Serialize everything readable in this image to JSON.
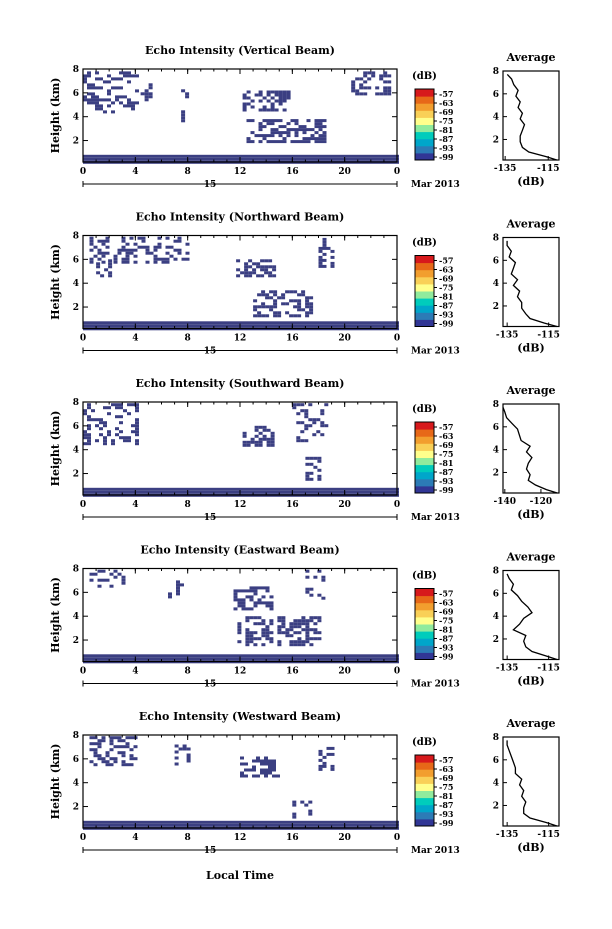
{
  "figure": {
    "xaxis_label": "Local Time",
    "date_day": "15",
    "date_month_year": "Mar 2013",
    "colorbar_unit": "(dB)",
    "colorbar_ticks": [
      "-57",
      "-63",
      "-69",
      "-75",
      "-81",
      "-87",
      "-93",
      "-99"
    ],
    "colorbar_colors": [
      "#313695",
      "#2c7bb6",
      "#00a6ca",
      "#00ccbc",
      "#90eb9d",
      "#ffff8c",
      "#f9d057",
      "#f29e2e",
      "#e76818",
      "#d7191c"
    ],
    "echo_color": "#3b3f82",
    "profile_title": "Average",
    "profile_xlabel": "(dB)"
  },
  "chart_data": [
    {
      "type": "heatmap",
      "title": "Echo Intensity (Vertical Beam)",
      "ylabel": "Height (km)",
      "xlabel": "Local Time",
      "xlim": [
        0,
        24
      ],
      "ylim": [
        0.2,
        8
      ],
      "xticks": [
        "0",
        "4",
        "8",
        "12",
        "16",
        "20",
        "0"
      ],
      "yticks": [
        "2",
        "4",
        "6",
        "8"
      ],
      "color_range_db": [
        -99,
        -57
      ],
      "regions": [
        {
          "name": "near-ground layer",
          "t": [
            0,
            24
          ],
          "h": [
            0.2,
            0.8
          ]
        },
        {
          "name": "early high echo",
          "t": [
            0,
            4
          ],
          "h": [
            4.5,
            7.8
          ]
        },
        {
          "name": "streak",
          "t": [
            4.4,
            5.2
          ],
          "h": [
            5.5,
            7.3
          ]
        },
        {
          "name": "streak",
          "t": [
            7.5,
            7.9
          ],
          "h": [
            3.5,
            6.3
          ]
        },
        {
          "name": "cluster",
          "t": [
            12.2,
            15.6
          ],
          "h": [
            4.5,
            6.2
          ]
        },
        {
          "name": "band",
          "t": [
            12.5,
            18.5
          ],
          "h": [
            1.8,
            3.8
          ]
        },
        {
          "name": "scatter",
          "t": [
            20.5,
            23.5
          ],
          "h": [
            6.0,
            7.8
          ]
        }
      ],
      "profile": {
        "xlim": [
          -136,
          -110
        ],
        "xticks": [
          "-135",
          "-115"
        ],
        "h": [
          0.2,
          0.5,
          0.9,
          1.3,
          1.8,
          2.3,
          2.8,
          3.3,
          3.8,
          4.3,
          4.8,
          5.3,
          5.8,
          6.3,
          6.8,
          7.3,
          7.7
        ],
        "db": [
          -111,
          -116,
          -124,
          -127,
          -128,
          -128,
          -127,
          -126,
          -128,
          -127,
          -129,
          -128,
          -130,
          -129,
          -131,
          -132,
          -134
        ]
      }
    },
    {
      "type": "heatmap",
      "title": "Echo Intensity (Northward Beam)",
      "ylabel": "Height (km)",
      "xlabel": "Local Time",
      "xlim": [
        0,
        24
      ],
      "ylim": [
        0.2,
        8
      ],
      "xticks": [
        "0",
        "4",
        "8",
        "12",
        "16",
        "20",
        "0"
      ],
      "yticks": [
        "2",
        "4",
        "6",
        "8"
      ],
      "color_range_db": [
        -99,
        -57
      ],
      "regions": [
        {
          "name": "near-ground layer",
          "t": [
            0,
            24
          ],
          "h": [
            0.2,
            0.8
          ]
        },
        {
          "name": "early high echo",
          "t": [
            0.5,
            8
          ],
          "h": [
            5.8,
            7.9
          ]
        },
        {
          "name": "streak",
          "t": [
            1,
            2
          ],
          "h": [
            4.5,
            6
          ]
        },
        {
          "name": "cluster",
          "t": [
            11.7,
            14.5
          ],
          "h": [
            4.5,
            6.0
          ]
        },
        {
          "name": "band",
          "t": [
            13,
            17.5
          ],
          "h": [
            1.3,
            3.4
          ]
        },
        {
          "name": "streak",
          "t": [
            18,
            19
          ],
          "h": [
            5.5,
            7.8
          ]
        }
      ],
      "profile": {
        "xlim": [
          -137,
          -110
        ],
        "xticks": [
          "-135",
          "-115"
        ],
        "h": [
          0.2,
          0.5,
          0.9,
          1.3,
          1.8,
          2.3,
          2.8,
          3.3,
          3.8,
          4.3,
          4.8,
          5.3,
          5.8,
          6.3,
          6.8,
          7.3,
          7.7
        ],
        "db": [
          -111,
          -117,
          -124,
          -126,
          -128,
          -128,
          -130,
          -129,
          -132,
          -130,
          -133,
          -132,
          -131,
          -134,
          -133,
          -135,
          -135
        ]
      }
    },
    {
      "type": "heatmap",
      "title": "Echo Intensity (Southward Beam)",
      "ylabel": "Height (km)",
      "xlabel": "Local Time",
      "xlim": [
        0,
        24
      ],
      "ylim": [
        0.2,
        8
      ],
      "xticks": [
        "0",
        "4",
        "8",
        "12",
        "16",
        "20",
        "0"
      ],
      "yticks": [
        "2",
        "4",
        "6",
        "8"
      ],
      "color_range_db": [
        -99,
        -57
      ],
      "regions": [
        {
          "name": "near-ground layer",
          "t": [
            0,
            24
          ],
          "h": [
            0.2,
            0.8
          ]
        },
        {
          "name": "early high echo",
          "t": [
            0,
            4
          ],
          "h": [
            4.5,
            7.9
          ]
        },
        {
          "name": "cluster",
          "t": [
            12.2,
            14.5
          ],
          "h": [
            4.4,
            6.0
          ]
        },
        {
          "name": "scatter",
          "t": [
            16,
            18.5
          ],
          "h": [
            4.8,
            7.9
          ]
        },
        {
          "name": "scatter",
          "t": [
            17,
            18
          ],
          "h": [
            1.5,
            3.4
          ]
        }
      ],
      "profile": {
        "xlim": [
          -141,
          -110
        ],
        "xticks": [
          "-140",
          "-120"
        ],
        "h": [
          0.2,
          0.5,
          0.9,
          1.3,
          1.8,
          2.3,
          2.8,
          3.3,
          3.8,
          4.3,
          4.8,
          5.3,
          5.8,
          6.3,
          6.8,
          7.3,
          7.7
        ],
        "db": [
          -111,
          -117,
          -123,
          -127,
          -126,
          -128,
          -127,
          -125,
          -128,
          -126,
          -131,
          -132,
          -133,
          -136,
          -139,
          -140,
          -141
        ]
      }
    },
    {
      "type": "heatmap",
      "title": "Echo Intensity (Eastward Beam)",
      "ylabel": "Height (km)",
      "xlabel": "Local Time",
      "xlim": [
        0,
        24
      ],
      "ylim": [
        0.2,
        8
      ],
      "xticks": [
        "0",
        "4",
        "8",
        "12",
        "16",
        "20",
        "0"
      ],
      "yticks": [
        "2",
        "4",
        "6",
        "8"
      ],
      "color_range_db": [
        -99,
        -57
      ],
      "regions": [
        {
          "name": "near-ground layer",
          "t": [
            0,
            24
          ],
          "h": [
            0.2,
            0.8
          ]
        },
        {
          "name": "early high echo",
          "t": [
            0.5,
            3.5
          ],
          "h": [
            6.5,
            7.9
          ]
        },
        {
          "name": "streak",
          "t": [
            6.5,
            7.5
          ],
          "h": [
            5.5,
            7.0
          ]
        },
        {
          "name": "cluster",
          "t": [
            11.5,
            14.5
          ],
          "h": [
            4.5,
            6.5
          ]
        },
        {
          "name": "band",
          "t": [
            11.8,
            18
          ],
          "h": [
            1.5,
            4.0
          ]
        },
        {
          "name": "scatter",
          "t": [
            17,
            18.5
          ],
          "h": [
            5.5,
            7.9
          ]
        }
      ],
      "profile": {
        "xlim": [
          -137,
          -110
        ],
        "xticks": [
          "-135",
          "-115"
        ],
        "h": [
          0.2,
          0.5,
          0.9,
          1.3,
          1.8,
          2.3,
          2.8,
          3.3,
          3.8,
          4.3,
          4.8,
          5.3,
          5.8,
          6.3,
          6.8,
          7.3,
          7.7
        ],
        "db": [
          -111,
          -116,
          -123,
          -126,
          -127,
          -126,
          -132,
          -129,
          -127,
          -123,
          -125,
          -128,
          -130,
          -133,
          -132,
          -134,
          -135
        ]
      }
    },
    {
      "type": "heatmap",
      "title": "Echo Intensity (Westward Beam)",
      "ylabel": "Height (km)",
      "xlabel": "Local Time",
      "xlim": [
        0,
        24
      ],
      "ylim": [
        0.2,
        8
      ],
      "xticks": [
        "0",
        "4",
        "8",
        "12",
        "16",
        "20",
        "0"
      ],
      "yticks": [
        "2",
        "4",
        "6",
        "8"
      ],
      "color_range_db": [
        -99,
        -57
      ],
      "regions": [
        {
          "name": "near-ground layer",
          "t": [
            0,
            24
          ],
          "h": [
            0.2,
            0.8
          ]
        },
        {
          "name": "early high echo",
          "t": [
            0.5,
            4
          ],
          "h": [
            5.5,
            7.9
          ]
        },
        {
          "name": "streak",
          "t": [
            7,
            8
          ],
          "h": [
            5.5,
            7.2
          ]
        },
        {
          "name": "cluster",
          "t": [
            12,
            15
          ],
          "h": [
            4.5,
            6.2
          ]
        },
        {
          "name": "scatter",
          "t": [
            16,
            17.5
          ],
          "h": [
            1.0,
            2.5
          ]
        },
        {
          "name": "scatter",
          "t": [
            18,
            19
          ],
          "h": [
            5.0,
            7.0
          ]
        }
      ],
      "profile": {
        "xlim": [
          -137,
          -110
        ],
        "xticks": [
          "-135",
          "-115"
        ],
        "h": [
          0.2,
          0.5,
          0.9,
          1.3,
          1.8,
          2.3,
          2.8,
          3.3,
          3.8,
          4.3,
          4.8,
          5.3,
          5.8,
          6.3,
          6.8,
          7.3,
          7.7
        ],
        "db": [
          -111,
          -116,
          -124,
          -127,
          -127,
          -126,
          -128,
          -127,
          -129,
          -128,
          -131,
          -131,
          -132,
          -133,
          -134,
          -135,
          -135
        ]
      }
    }
  ]
}
